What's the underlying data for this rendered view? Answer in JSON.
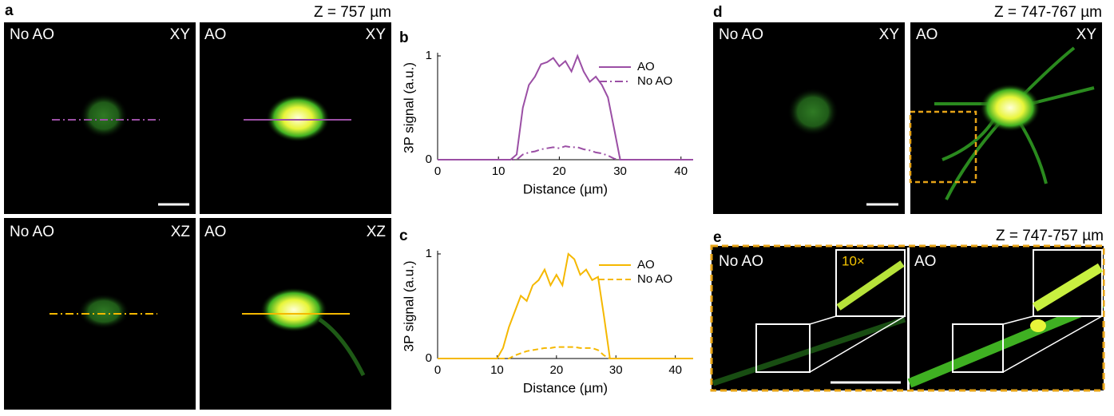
{
  "figure": {
    "a": {
      "label": "a",
      "z": "Z = 757 µm",
      "images": [
        {
          "left": "No AO",
          "right": "XY"
        },
        {
          "left": "AO",
          "right": "XY"
        },
        {
          "left": "No AO",
          "right": "XZ"
        },
        {
          "left": "AO",
          "right": "XZ"
        }
      ]
    },
    "d": {
      "label": "d",
      "z": "Z = 747-767 µm",
      "images": [
        {
          "left": "No AO",
          "right": "XY"
        },
        {
          "left": "AO",
          "right": "XY"
        }
      ]
    },
    "e": {
      "label": "e",
      "z": "Z = 747-757 µm",
      "images": [
        {
          "left": "No AO"
        },
        {
          "left": "AO"
        }
      ],
      "zoom": "10×"
    }
  },
  "chart_data": [
    {
      "type": "line",
      "panel_label": "b",
      "xlabel": "Distance (µm)",
      "ylabel": "3P signal (a.u.)",
      "x": [
        0,
        5,
        10,
        12,
        13,
        14,
        15,
        16,
        17,
        18,
        19,
        20,
        21,
        22,
        23,
        24,
        25,
        26,
        27,
        28,
        29,
        30,
        35,
        42
      ],
      "series": [
        {
          "name": "AO",
          "color": "#9b4fa5",
          "line_style": "solid",
          "values": [
            0,
            0,
            0,
            0,
            0.05,
            0.5,
            0.72,
            0.8,
            0.92,
            0.94,
            0.98,
            0.9,
            0.95,
            0.85,
            1.0,
            0.85,
            0.75,
            0.8,
            0.72,
            0.6,
            0.3,
            0,
            0,
            0
          ]
        },
        {
          "name": "No AO",
          "color": "#9b4fa5",
          "line_style": "dash-dot",
          "values": [
            0,
            0,
            0,
            0,
            0,
            0.05,
            0.07,
            0.08,
            0.1,
            0.11,
            0.12,
            0.11,
            0.13,
            0.12,
            0.12,
            0.1,
            0.09,
            0.07,
            0.06,
            0.04,
            0.01,
            0,
            0,
            0
          ]
        }
      ],
      "xlim": [
        0,
        42
      ],
      "xticks": [
        0,
        10,
        20,
        30,
        40
      ],
      "ylim": [
        0,
        1
      ],
      "yticks": [
        0,
        1
      ],
      "legend": "upper right"
    },
    {
      "type": "line",
      "panel_label": "c",
      "xlabel": "Distance (µm)",
      "ylabel": "3P signal (a.u.)",
      "x": [
        0,
        5,
        10,
        11,
        12,
        13,
        14,
        15,
        16,
        17,
        18,
        19,
        20,
        21,
        22,
        23,
        24,
        25,
        26,
        27,
        28,
        29,
        35,
        43
      ],
      "series": [
        {
          "name": "AO",
          "color": "#f5b800",
          "line_style": "solid",
          "values": [
            0,
            0,
            0,
            0.1,
            0.3,
            0.45,
            0.6,
            0.55,
            0.7,
            0.75,
            0.85,
            0.7,
            0.8,
            0.7,
            1.0,
            0.95,
            0.8,
            0.85,
            0.75,
            0.78,
            0.4,
            0,
            0,
            0
          ]
        },
        {
          "name": "No AO",
          "color": "#f5b800",
          "line_style": "dashed",
          "values": [
            0,
            0,
            0,
            0,
            0,
            0.03,
            0.05,
            0.07,
            0.08,
            0.09,
            0.1,
            0.1,
            0.11,
            0.11,
            0.11,
            0.11,
            0.1,
            0.1,
            0.1,
            0.08,
            0.03,
            0,
            0,
            0
          ]
        }
      ],
      "xlim": [
        0,
        43
      ],
      "xticks": [
        0,
        10,
        20,
        30,
        40
      ],
      "ylim": [
        0,
        1
      ],
      "yticks": [
        0,
        1
      ],
      "legend": "upper right"
    }
  ]
}
